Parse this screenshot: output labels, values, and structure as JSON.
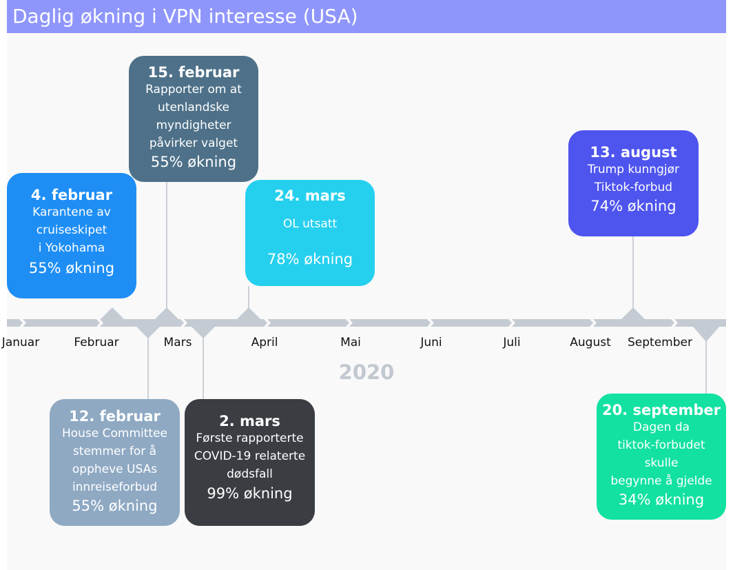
{
  "title": "Daglig økning i VPN interesse (USA)",
  "year": "2020",
  "months": [
    "Januar",
    "Februar",
    "Mars",
    "April",
    "Mai",
    "Juni",
    "Juli",
    "August",
    "September"
  ],
  "events": [
    {
      "date": "4. februar",
      "text": "Karantene av\ncruiseskipet\n i Yokohama",
      "increase": "55% økning",
      "color": "#1e8ef5",
      "side": "above"
    },
    {
      "date": "15. februar",
      "text": "Rapporter om at\nutenlandske\nmyndigheter\npåvirker valget",
      "increase": "55% økning",
      "color": "#4e7189",
      "side": "above"
    },
    {
      "date": "24. mars",
      "text": "OL utsatt",
      "increase": "78% økning",
      "color": "#25d0ee",
      "side": "above"
    },
    {
      "date": "13. august",
      "text": "Trump kunngjør\nTiktok-forbud",
      "increase": "74% økning",
      "color": "#4e54ee",
      "side": "above"
    },
    {
      "date": "12. februar",
      "text": "House Committee\nstemmer for å\noppheve USAs\ninnreiseforbud",
      "increase": "55% økning",
      "color": "#8fa9c3",
      "side": "below"
    },
    {
      "date": "2. mars",
      "text": "Første rapporterte\nCOVID-19 relaterte\ndødsfall",
      "increase": "99% økning",
      "color": "#3a3d42",
      "side": "below"
    },
    {
      "date": "20. september",
      "text": "Dagen da\ntiktok-forbudet\nskulle\nbegynne å gjelde",
      "increase": "34% økning",
      "color": "#12e1a1",
      "side": "below"
    }
  ]
}
